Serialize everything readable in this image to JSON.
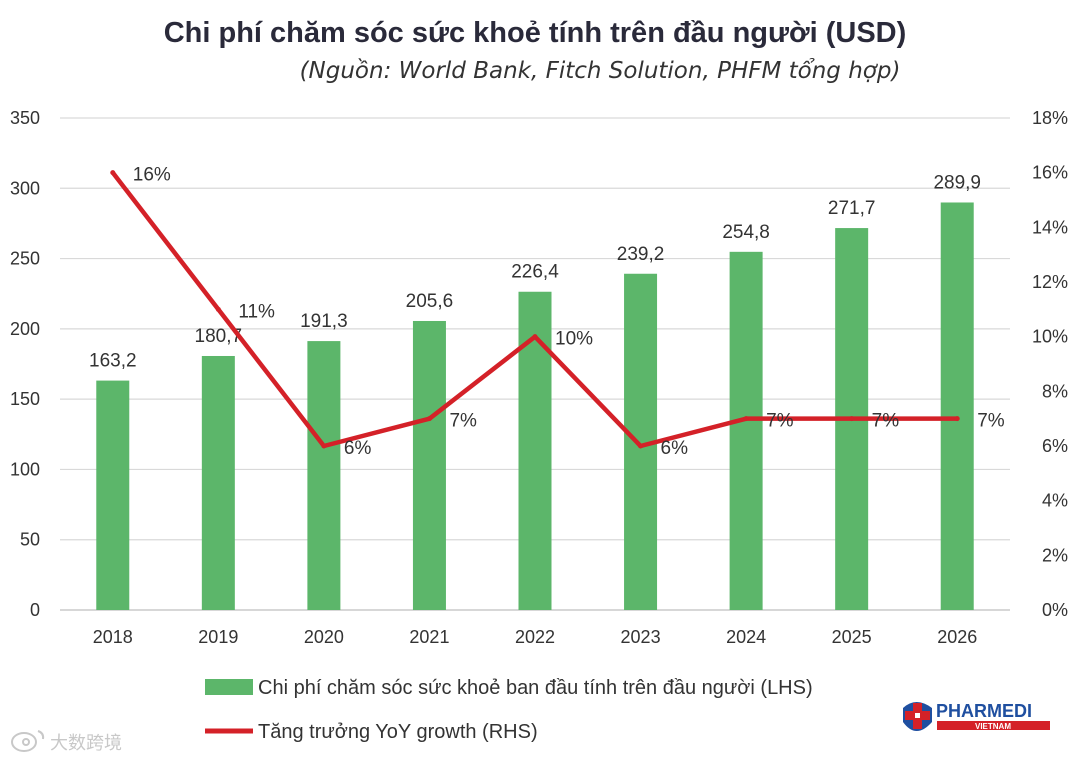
{
  "chart_data": {
    "type": "bar",
    "title": "Chi phí chăm sóc sức khoẻ tính trên đầu người (USD)",
    "subtitle": "(Nguồn: World Bank, Fitch Solution, PHFM tổng hợp)",
    "categories": [
      "2018",
      "2019",
      "2020",
      "2021",
      "2022",
      "2023",
      "2024",
      "2025",
      "2026"
    ],
    "series": [
      {
        "name": "Chi phí chăm sóc sức khoẻ ban đầu tính trên đầu người (LHS)",
        "type": "bar",
        "axis": "left",
        "color": "#5cb66a",
        "values": [
          163.2,
          180.7,
          191.3,
          205.6,
          226.4,
          239.2,
          254.8,
          271.7,
          289.9
        ],
        "labels": [
          "163,2",
          "180,7",
          "191,3",
          "205,6",
          "226,4",
          "239,2",
          "254,8",
          "271,7",
          "289,9"
        ]
      },
      {
        "name": "Tăng trưởng YoY growth (RHS)",
        "type": "line",
        "axis": "right",
        "color": "#d42128",
        "values": [
          16,
          11,
          6,
          7,
          10,
          6,
          7,
          7,
          7
        ],
        "labels": [
          "16%",
          "11%",
          "6%",
          "7%",
          "10%",
          "6%",
          "7%",
          "7%",
          "7%"
        ]
      }
    ],
    "y_left": {
      "min": 0,
      "max": 350,
      "ticks": [
        "0",
        "50",
        "100",
        "150",
        "200",
        "250",
        "300",
        "350"
      ]
    },
    "y_right": {
      "min": 0,
      "max": 18,
      "ticks": [
        "0%",
        "2%",
        "4%",
        "6%",
        "8%",
        "10%",
        "12%",
        "14%",
        "16%",
        "18%"
      ]
    },
    "grid": true,
    "legend_position": "bottom-left"
  },
  "logo": {
    "name": "PHARMEDI",
    "sub": "VIETNAM",
    "icon": "red-cross-logo-icon"
  },
  "watermark": {
    "text": "大数跨境",
    "icon": "weibo-logo-icon"
  }
}
